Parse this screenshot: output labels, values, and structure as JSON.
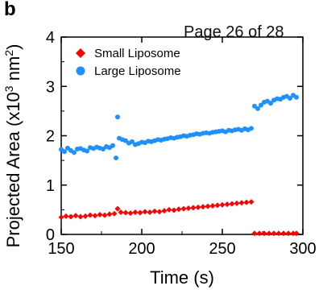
{
  "panel_label": "b",
  "page_note": "Page 26 of 28",
  "colors": {
    "small": "#ff0000",
    "large": "#1e90ff",
    "axis": "#000000"
  },
  "chart_data": {
    "type": "scatter",
    "xlabel": "Time (s)",
    "ylabel": "Projected Area (x10³ nm²)",
    "ylabel_parts": {
      "prefix": "Projected Area (x10",
      "sup1": "3",
      "mid": " nm",
      "sup2": "2",
      "suffix": ")"
    },
    "xlim": [
      150,
      300
    ],
    "ylim": [
      0,
      4
    ],
    "xticks": [
      150,
      200,
      250,
      300
    ],
    "yticks": [
      0,
      1,
      2,
      3,
      4
    ],
    "grid": false,
    "legend_position": "top-left",
    "series": [
      {
        "name": "Small Liposome",
        "marker": "diamond",
        "color": "#ff0000",
        "x": [
          150,
          153,
          156,
          159,
          162,
          165,
          168,
          171,
          174,
          177,
          180,
          183,
          185,
          187,
          190,
          193,
          196,
          199,
          202,
          205,
          208,
          211,
          214,
          217,
          220,
          223,
          226,
          229,
          232,
          235,
          238,
          241,
          244,
          247,
          250,
          253,
          256,
          259,
          262,
          265,
          268,
          270,
          273,
          276,
          279,
          282,
          285,
          288,
          291,
          294,
          296
        ],
        "y": [
          0.35,
          0.37,
          0.36,
          0.38,
          0.36,
          0.37,
          0.39,
          0.38,
          0.4,
          0.39,
          0.41,
          0.42,
          0.52,
          0.45,
          0.44,
          0.43,
          0.45,
          0.44,
          0.46,
          0.45,
          0.47,
          0.46,
          0.48,
          0.5,
          0.49,
          0.51,
          0.52,
          0.53,
          0.54,
          0.55,
          0.56,
          0.57,
          0.58,
          0.59,
          0.6,
          0.61,
          0.62,
          0.63,
          0.64,
          0.65,
          0.66,
          0.02,
          0.02,
          0.02,
          0.02,
          0.02,
          0.02,
          0.02,
          0.02,
          0.02,
          0.02
        ]
      },
      {
        "name": "Large Liposome",
        "marker": "circle",
        "color": "#1e90ff",
        "x": [
          150,
          152,
          154,
          156,
          158,
          160,
          162,
          164,
          166,
          168,
          170,
          172,
          174,
          176,
          178,
          180,
          182,
          184,
          185,
          186,
          188,
          190,
          192,
          194,
          196,
          198,
          200,
          202,
          204,
          206,
          208,
          210,
          212,
          214,
          216,
          218,
          220,
          222,
          224,
          226,
          228,
          230,
          232,
          234,
          236,
          238,
          240,
          242,
          244,
          246,
          248,
          250,
          252,
          254,
          256,
          258,
          260,
          262,
          264,
          266,
          268,
          270,
          272,
          274,
          276,
          278,
          280,
          282,
          284,
          286,
          288,
          290,
          292,
          294,
          296
        ],
        "y": [
          1.72,
          1.68,
          1.75,
          1.7,
          1.66,
          1.73,
          1.74,
          1.71,
          1.69,
          1.76,
          1.74,
          1.77,
          1.75,
          1.73,
          1.78,
          1.76,
          1.8,
          1.55,
          2.38,
          1.95,
          1.92,
          1.9,
          1.85,
          1.88,
          1.82,
          1.84,
          1.87,
          1.86,
          1.89,
          1.88,
          1.9,
          1.92,
          1.91,
          1.93,
          1.94,
          1.96,
          1.95,
          1.97,
          1.98,
          2.0,
          1.99,
          2.01,
          2.02,
          2.04,
          2.03,
          2.05,
          2.06,
          2.05,
          2.07,
          2.08,
          2.09,
          2.1,
          2.08,
          2.11,
          2.1,
          2.12,
          2.13,
          2.11,
          2.14,
          2.12,
          2.15,
          2.6,
          2.55,
          2.62,
          2.68,
          2.7,
          2.66,
          2.72,
          2.75,
          2.74,
          2.78,
          2.8,
          2.76,
          2.82,
          2.78
        ]
      }
    ]
  }
}
